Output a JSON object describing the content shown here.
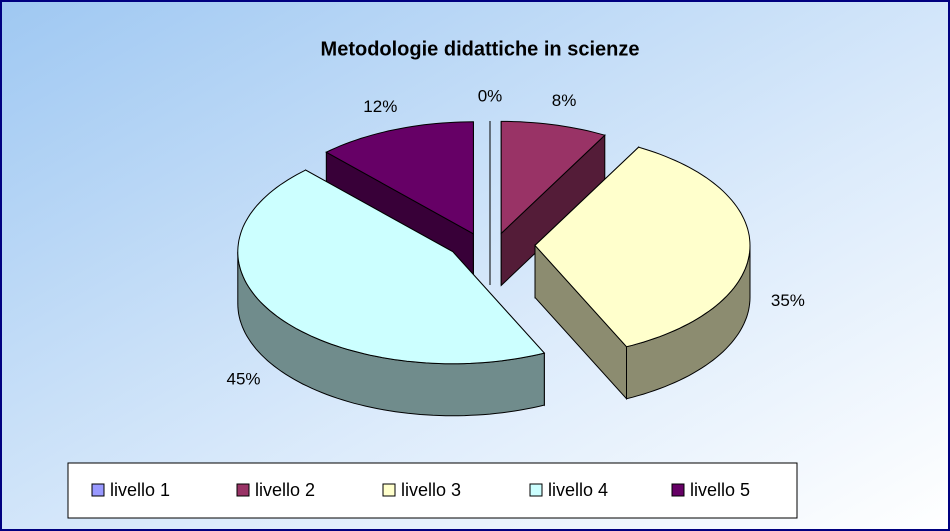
{
  "chart_data": {
    "type": "pie3d",
    "title": "Metodologie didattiche in scienze",
    "categories": [
      "livello 1",
      "livello 2",
      "livello 3",
      "livello 4",
      "livello 5"
    ],
    "values": [
      0,
      8,
      35,
      45,
      12
    ],
    "value_labels": [
      "0%",
      "8%",
      "35%",
      "45%",
      "12%"
    ],
    "colors": [
      "#9999ff",
      "#993366",
      "#ffffcc",
      "#ccffff",
      "#660066"
    ],
    "legend": "bottom"
  }
}
